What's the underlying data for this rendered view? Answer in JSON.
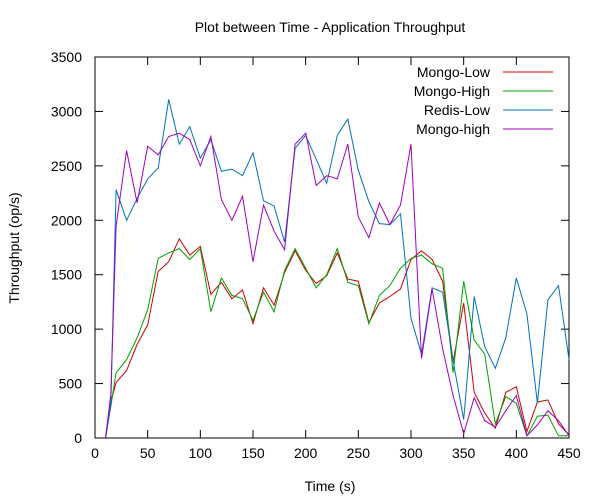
{
  "chart_data": {
    "type": "line",
    "title": "Plot between Time - Application Throughput",
    "xlabel": "Time (s)",
    "ylabel": "Throughput (op/s)",
    "xlim": [
      0,
      450
    ],
    "ylim": [
      0,
      3500
    ],
    "xticks": [
      0,
      50,
      100,
      150,
      200,
      250,
      300,
      350,
      400,
      450
    ],
    "yticks": [
      0,
      500,
      1000,
      1500,
      2000,
      2500,
      3000,
      3500
    ],
    "grid": false,
    "legend_position": "top-right",
    "x": [
      10,
      15,
      20,
      30,
      40,
      50,
      60,
      70,
      80,
      90,
      100,
      110,
      120,
      130,
      140,
      150,
      160,
      170,
      180,
      190,
      200,
      210,
      220,
      230,
      240,
      250,
      260,
      270,
      280,
      290,
      300,
      310,
      320,
      330,
      340,
      350,
      360,
      370,
      380,
      390,
      400,
      410,
      420,
      430,
      440,
      450
    ],
    "series": [
      {
        "name": "Mongo-Low",
        "color": "#d00000",
        "values": [
          0,
          330,
          510,
          620,
          860,
          1040,
          1530,
          1620,
          1830,
          1680,
          1760,
          1320,
          1430,
          1280,
          1360,
          1050,
          1380,
          1220,
          1520,
          1720,
          1540,
          1420,
          1490,
          1700,
          1460,
          1440,
          1060,
          1240,
          1300,
          1370,
          1640,
          1720,
          1640,
          1440,
          700,
          1240,
          420,
          230,
          90,
          420,
          470,
          60,
          330,
          350,
          130,
          30
        ]
      },
      {
        "name": "Mongo-High",
        "color": "#00a000",
        "values": [
          0,
          290,
          600,
          720,
          920,
          1180,
          1650,
          1700,
          1740,
          1640,
          1740,
          1160,
          1470,
          1310,
          1280,
          1080,
          1340,
          1160,
          1540,
          1740,
          1560,
          1380,
          1500,
          1740,
          1430,
          1400,
          1050,
          1310,
          1400,
          1560,
          1650,
          1680,
          1600,
          1560,
          600,
          1440,
          900,
          770,
          130,
          380,
          320,
          20,
          200,
          210,
          20,
          20
        ]
      },
      {
        "name": "Redis-Low",
        "color": "#0070c0",
        "values": [
          0,
          300,
          2280,
          2000,
          2200,
          2380,
          2480,
          3110,
          2700,
          2860,
          2570,
          2740,
          2450,
          2470,
          2410,
          2620,
          2180,
          2130,
          1800,
          2660,
          2780,
          2560,
          2340,
          2780,
          2930,
          2460,
          2170,
          1970,
          1960,
          2060,
          1100,
          770,
          1380,
          1340,
          710,
          170,
          1300,
          840,
          640,
          920,
          1470,
          1140,
          320,
          1270,
          1400,
          720
        ]
      },
      {
        "name": "Mongo-high",
        "color": "#a000c0",
        "values": [
          0,
          400,
          1950,
          2640,
          2160,
          2680,
          2600,
          2770,
          2800,
          2740,
          2500,
          2770,
          2190,
          2000,
          2220,
          1620,
          2140,
          1900,
          1730,
          2700,
          2800,
          2320,
          2410,
          2380,
          2700,
          2030,
          1840,
          2160,
          1960,
          2140,
          2700,
          730,
          1370,
          820,
          390,
          40,
          370,
          160,
          100,
          250,
          390,
          20,
          120,
          250,
          160,
          20
        ]
      }
    ]
  }
}
